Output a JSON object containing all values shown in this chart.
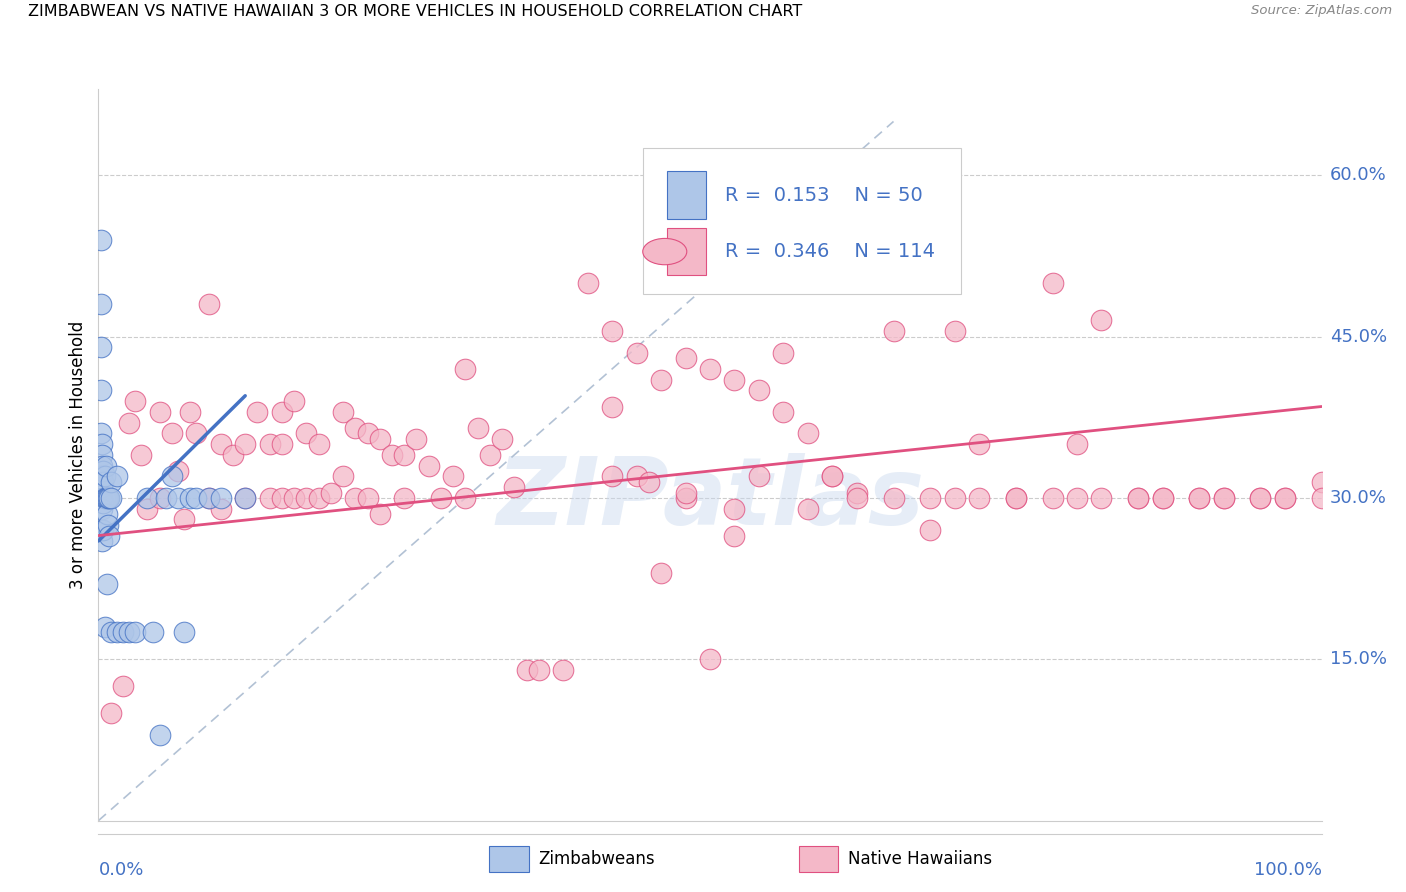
{
  "title": "ZIMBABWEAN VS NATIVE HAWAIIAN 3 OR MORE VEHICLES IN HOUSEHOLD CORRELATION CHART",
  "source": "Source: ZipAtlas.com",
  "ylabel": "3 or more Vehicles in Household",
  "watermark": "ZIPatlas",
  "legend": {
    "zimbabwean_R": 0.153,
    "zimbabwean_N": 50,
    "hawaiian_R": 0.346,
    "hawaiian_N": 114
  },
  "zimbabwean_color": "#aec6e8",
  "hawaiian_color": "#f4b8c8",
  "trendline_zimbabwean_color": "#4472c4",
  "trendline_hawaiian_color": "#e05080",
  "diagonal_color": "#aabbd0",
  "ytick_color": "#4472c4",
  "label_color": "#4472c4",
  "ytick_labels": [
    "15.0%",
    "30.0%",
    "45.0%",
    "60.0%"
  ],
  "ytick_values": [
    0.15,
    0.3,
    0.45,
    0.6
  ],
  "xlim": [
    0.0,
    1.0
  ],
  "ylim": [
    0.0,
    0.68
  ],
  "zim_trend_x0": 0.0,
  "zim_trend_x1": 0.12,
  "zim_trend_y0": 0.26,
  "zim_trend_y1": 0.395,
  "haw_trend_x0": 0.0,
  "haw_trend_x1": 1.0,
  "haw_trend_y0": 0.265,
  "haw_trend_y1": 0.385,
  "zimbabwean_x": [
    0.002,
    0.002,
    0.002,
    0.002,
    0.002,
    0.003,
    0.003,
    0.003,
    0.003,
    0.003,
    0.003,
    0.003,
    0.003,
    0.003,
    0.004,
    0.004,
    0.004,
    0.004,
    0.005,
    0.005,
    0.005,
    0.006,
    0.006,
    0.007,
    0.007,
    0.007,
    0.008,
    0.008,
    0.009,
    0.009,
    0.01,
    0.01,
    0.01,
    0.015,
    0.015,
    0.02,
    0.025,
    0.03,
    0.04,
    0.045,
    0.05,
    0.055,
    0.06,
    0.065,
    0.07,
    0.075,
    0.08,
    0.09,
    0.1,
    0.12
  ],
  "zimbabwean_y": [
    0.54,
    0.48,
    0.44,
    0.4,
    0.36,
    0.35,
    0.34,
    0.33,
    0.32,
    0.31,
    0.3,
    0.29,
    0.27,
    0.26,
    0.325,
    0.315,
    0.295,
    0.27,
    0.32,
    0.3,
    0.18,
    0.33,
    0.3,
    0.3,
    0.285,
    0.22,
    0.3,
    0.275,
    0.3,
    0.265,
    0.315,
    0.3,
    0.175,
    0.32,
    0.175,
    0.175,
    0.175,
    0.175,
    0.3,
    0.175,
    0.08,
    0.3,
    0.32,
    0.3,
    0.175,
    0.3,
    0.3,
    0.3,
    0.3,
    0.3
  ],
  "hawaiian_x": [
    0.01,
    0.02,
    0.025,
    0.03,
    0.035,
    0.04,
    0.05,
    0.05,
    0.06,
    0.065,
    0.07,
    0.075,
    0.08,
    0.09,
    0.09,
    0.1,
    0.1,
    0.11,
    0.12,
    0.12,
    0.13,
    0.14,
    0.14,
    0.15,
    0.15,
    0.15,
    0.16,
    0.16,
    0.17,
    0.17,
    0.18,
    0.18,
    0.19,
    0.2,
    0.2,
    0.21,
    0.21,
    0.22,
    0.22,
    0.23,
    0.23,
    0.24,
    0.25,
    0.25,
    0.26,
    0.27,
    0.28,
    0.29,
    0.3,
    0.3,
    0.31,
    0.32,
    0.33,
    0.34,
    0.35,
    0.36,
    0.38,
    0.4,
    0.42,
    0.44,
    0.46,
    0.48,
    0.5,
    0.52,
    0.54,
    0.56,
    0.58,
    0.6,
    0.62,
    0.65,
    0.68,
    0.7,
    0.72,
    0.75,
    0.78,
    0.8,
    0.82,
    0.85,
    0.87,
    0.9,
    0.92,
    0.95,
    0.97,
    1.0,
    0.42,
    0.44,
    0.46,
    0.48,
    0.5,
    0.52,
    0.54,
    0.56,
    0.58,
    0.6,
    0.62,
    0.65,
    0.68,
    0.7,
    0.72,
    0.75,
    0.78,
    0.8,
    0.82,
    0.85,
    0.87,
    0.9,
    0.92,
    0.95,
    0.97,
    1.0,
    0.42,
    0.45,
    0.48,
    0.52
  ],
  "hawaiian_y": [
    0.1,
    0.125,
    0.37,
    0.39,
    0.34,
    0.29,
    0.38,
    0.3,
    0.36,
    0.325,
    0.28,
    0.38,
    0.36,
    0.48,
    0.3,
    0.35,
    0.29,
    0.34,
    0.35,
    0.3,
    0.38,
    0.35,
    0.3,
    0.38,
    0.35,
    0.3,
    0.39,
    0.3,
    0.36,
    0.3,
    0.35,
    0.3,
    0.305,
    0.38,
    0.32,
    0.365,
    0.3,
    0.36,
    0.3,
    0.355,
    0.285,
    0.34,
    0.34,
    0.3,
    0.355,
    0.33,
    0.3,
    0.32,
    0.42,
    0.3,
    0.365,
    0.34,
    0.355,
    0.31,
    0.14,
    0.14,
    0.14,
    0.5,
    0.455,
    0.435,
    0.41,
    0.3,
    0.15,
    0.265,
    0.32,
    0.435,
    0.29,
    0.32,
    0.305,
    0.455,
    0.27,
    0.455,
    0.35,
    0.3,
    0.5,
    0.35,
    0.465,
    0.3,
    0.3,
    0.3,
    0.3,
    0.3,
    0.3,
    0.315,
    0.385,
    0.32,
    0.23,
    0.43,
    0.42,
    0.41,
    0.4,
    0.38,
    0.36,
    0.32,
    0.3,
    0.3,
    0.3,
    0.3,
    0.3,
    0.3,
    0.3,
    0.3,
    0.3,
    0.3,
    0.3,
    0.3,
    0.3,
    0.3,
    0.3,
    0.3,
    0.32,
    0.315,
    0.305,
    0.29
  ]
}
